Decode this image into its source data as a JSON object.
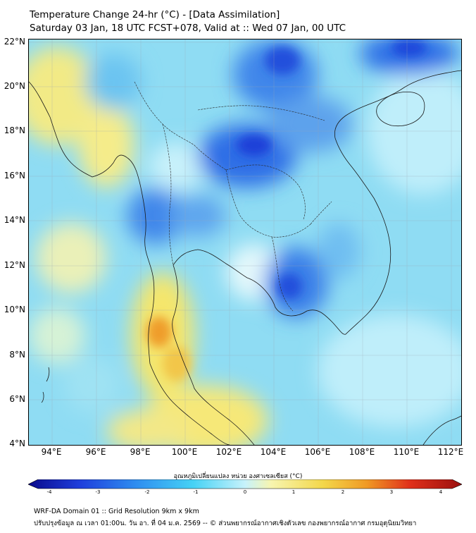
{
  "title": {
    "line1": "Temperature Change 24-hr (°C) - [Data Assimilation]",
    "line2": "Saturday 03 Jan, 18 UTC FCST+078, Valid at :: Wed 07 Jan, 00 UTC"
  },
  "map": {
    "lat_labels": [
      "22°N",
      "20°N",
      "18°N",
      "16°N",
      "14°N",
      "12°N",
      "10°N",
      "8°N",
      "6°N",
      "4°N"
    ],
    "lon_labels": [
      "94°E",
      "96°E",
      "98°E",
      "100°E",
      "102°E",
      "104°E",
      "106°E",
      "108°E",
      "110°E",
      "112°E"
    ],
    "extent": {
      "lon_min": 93.0,
      "lon_max": 112.5,
      "lat_min": 4.0,
      "lat_max": 22.2
    },
    "colors": {
      "cold_dark": "#1a3fd6",
      "cold": "#3b8be8",
      "cool": "#66c6f0",
      "neutral": "#c8f0fa",
      "warm": "#f5ea7a",
      "hot": "#f0a030"
    }
  },
  "colorbar": {
    "label": "อุณหภูมิเปลี่ยนแปลง หน่วย องศาเซลเซียส (°C)",
    "ticks": [
      "-4",
      "-3",
      "-2",
      "-1",
      "0",
      "1",
      "2",
      "3",
      "4"
    ],
    "colors": [
      "#0a0a8c",
      "#1f3fdc",
      "#2f8ef0",
      "#46d2f5",
      "#c7f2fb",
      "#f7f5b0",
      "#f3d74a",
      "#f09a25",
      "#e0301a",
      "#9a0f0f"
    ]
  },
  "footer": {
    "line1": "WRF-DA Domain 01 :: Grid Resolution 9km x 9km",
    "line2": "ปรับปรุงข้อมูล ณ เวลา 01:00น. วัน อา. ที่ 04 ม.ค. 2569 -- © ส่วนพยากรณ์อากาศเชิงตัวเลข กองพยากรณ์อากาศ กรมอุตุนิยมวิทยา"
  }
}
